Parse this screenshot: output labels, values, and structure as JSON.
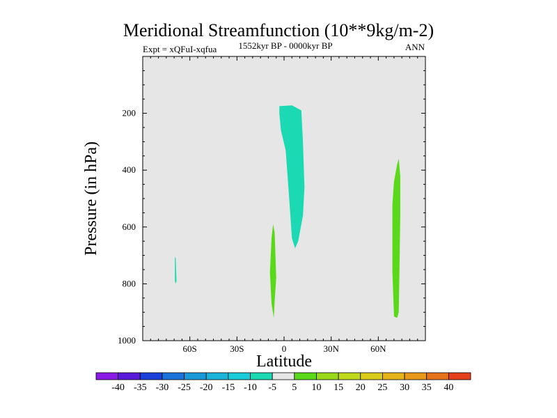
{
  "chart_data": {
    "type": "contour",
    "title": "Meridional Streamfunction (10**9kg/m-2)",
    "subtitle_left": "Expt = xQFuI-xqfua",
    "subtitle_center": "1552kyr BP - 0000kyr BP",
    "subtitle_right": "ANN",
    "xlabel": "Latitude",
    "ylabel": "Pressure (in hPa)",
    "xlim": [
      -90,
      90
    ],
    "ylim": [
      1000,
      0
    ],
    "x_ticks": [
      {
        "value": -60,
        "label": "60S"
      },
      {
        "value": -30,
        "label": "30S"
      },
      {
        "value": 0,
        "label": "0"
      },
      {
        "value": 30,
        "label": "30N"
      },
      {
        "value": 60,
        "label": "60N"
      }
    ],
    "y_ticks": [
      {
        "value": 200,
        "label": "200"
      },
      {
        "value": 400,
        "label": "400"
      },
      {
        "value": 600,
        "label": "600"
      },
      {
        "value": 800,
        "label": "800"
      },
      {
        "value": 1000,
        "label": "1000"
      }
    ],
    "background_color": "#e6e6e6",
    "filled_regions": [
      {
        "name": "upper-tropical-negative",
        "level": -5,
        "color": "#1ad9b3",
        "outline": [
          [
            -3,
            175
          ],
          [
            5,
            172
          ],
          [
            11,
            190
          ],
          [
            12,
            300
          ],
          [
            13,
            460
          ],
          [
            12,
            560
          ],
          [
            9,
            650
          ],
          [
            7,
            675
          ],
          [
            5,
            640
          ],
          [
            3,
            480
          ],
          [
            1,
            330
          ],
          [
            -2,
            260
          ],
          [
            -3,
            200
          ]
        ]
      },
      {
        "name": "southern-high-lat-negative",
        "level": -5,
        "color": "#1ad9b3",
        "outline": [
          [
            -69.5,
            705
          ],
          [
            -69,
            710
          ],
          [
            -68.5,
            790
          ],
          [
            -69,
            800
          ],
          [
            -69.5,
            790
          ]
        ]
      },
      {
        "name": "lower-tropical-positive",
        "level": 5,
        "color": "#59d91a",
        "outline": [
          [
            -7,
            590
          ],
          [
            -6,
            620
          ],
          [
            -5,
            780
          ],
          [
            -6,
            860
          ],
          [
            -6.5,
            920
          ],
          [
            -8,
            870
          ],
          [
            -9,
            760
          ],
          [
            -8,
            640
          ]
        ]
      },
      {
        "name": "northern-high-lat-positive",
        "level": 5,
        "color": "#59d91a",
        "outline": [
          [
            73,
            360
          ],
          [
            74,
            420
          ],
          [
            74,
            560
          ],
          [
            73.5,
            740
          ],
          [
            73,
            900
          ],
          [
            72,
            920
          ],
          [
            70,
            915
          ],
          [
            69,
            760
          ],
          [
            69,
            520
          ],
          [
            70,
            440
          ],
          [
            72,
            380
          ]
        ]
      }
    ],
    "colorbar": {
      "levels": [
        "-40",
        "-35",
        "-30",
        "-25",
        "-20",
        "-15",
        "-10",
        "-5",
        "5",
        "10",
        "15",
        "20",
        "25",
        "30",
        "35",
        "40"
      ],
      "colors": [
        "#8c1ae6",
        "#5a1ad9",
        "#1a40d9",
        "#1a73d9",
        "#1a99d9",
        "#1ab3d9",
        "#1accd9",
        "#1ad9b3",
        "#e6e6e6",
        "#59d91a",
        "#99d91a",
        "#c0d91a",
        "#d9cc1a",
        "#e6b31a",
        "#e6991a",
        "#e6731a",
        "#e6401a"
      ]
    }
  }
}
